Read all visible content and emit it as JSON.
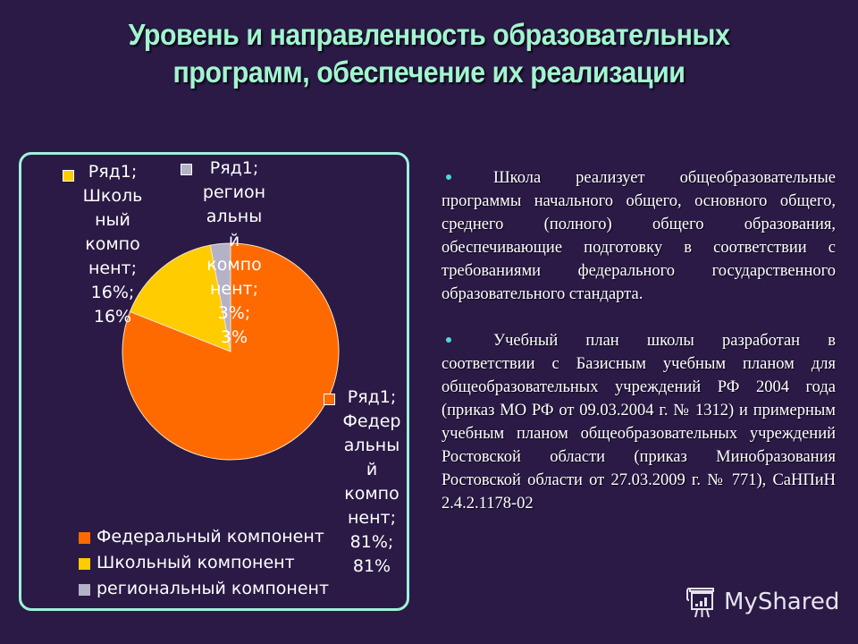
{
  "slide": {
    "title_line1": "Уровень и направленность образовательных",
    "title_line2": "программ, обеспечение их реализации",
    "background_color": "#2a1a45",
    "title_color": "#a2f5cf"
  },
  "chart_data": {
    "type": "pie",
    "title": "",
    "series_name": "Ряд1",
    "categories": [
      "Федеральный компонент",
      "Школьный компонент",
      "региональный компонент"
    ],
    "values": [
      81,
      16,
      3
    ],
    "unit": "%",
    "colors": [
      "#ff6a00",
      "#ffcc00",
      "#b4b2c6"
    ],
    "data_labels": [
      {
        "lines": [
          "Ряд1;",
          "Федер",
          "альны",
          "й",
          "компо",
          "нент;",
          "81%;",
          "81%"
        ]
      },
      {
        "lines": [
          "Ряд1;",
          "Школь",
          "ный",
          "компо",
          "нент;",
          "16%;",
          "16%"
        ]
      },
      {
        "lines": [
          "Ряд1;",
          "регион",
          "альны",
          "й",
          "компо",
          "нент;",
          "3%;",
          "3%"
        ]
      }
    ],
    "legend": {
      "position": "bottom-left",
      "entries": [
        "Федеральный компонент",
        "Школьный компонент",
        "региональный компонент"
      ]
    }
  },
  "text": {
    "bullets": [
      "Школа реализует общеобразовательные программы начального общего, основного общего, среднего (полного) общего образования, обеспечивающие подготовку в соответствии с требованиями федерального государственного образовательного стандарта.",
      "Учебный план школы разработан в соответствии с Базисным учебным планом для общеобразовательных учреждений РФ 2004 года (приказ МО РФ от 09.03.2004 г. № 1312) и примерным учебным планом общеобразовательных учреждений Ростовской области (приказ Минобразования Ростовской области от 27.03.2009 г. № 771), СаНПиН 2.4.2.1178-02"
    ]
  },
  "watermark": {
    "label": "MyShared"
  }
}
